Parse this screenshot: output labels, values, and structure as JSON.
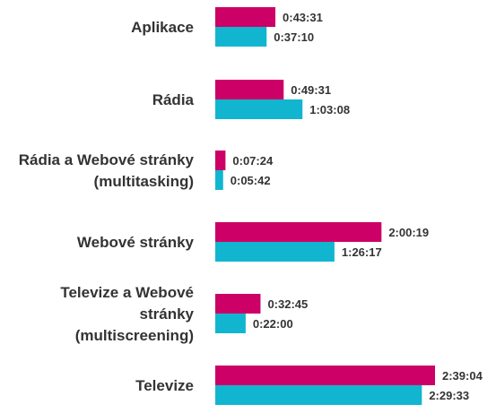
{
  "colors": {
    "series_a": "#cc0066",
    "series_b": "#12b5d0"
  },
  "chart_data": {
    "type": "bar",
    "orientation": "horizontal",
    "value_unit": "h:mm:ss",
    "categories": [
      [
        "Aplikace"
      ],
      [
        "Rádia"
      ],
      [
        "Rádia a Webové stránky",
        "(multitasking)"
      ],
      [
        "Webové stránky"
      ],
      [
        "Televize a Webové",
        "stránky",
        "(multiscreening)"
      ],
      [
        "Televize"
      ]
    ],
    "series": [
      {
        "color": "#cc0066",
        "values": [
          "0:43:31",
          "0:49:31",
          "0:07:24",
          "2:00:19",
          "0:32:45",
          "2:39:04"
        ]
      },
      {
        "color": "#12b5d0",
        "values": [
          "0:37:10",
          "1:03:08",
          "0:05:42",
          "1:26:17",
          "0:22:00",
          "2:29:33"
        ]
      }
    ],
    "grid": false,
    "legend": "none"
  }
}
